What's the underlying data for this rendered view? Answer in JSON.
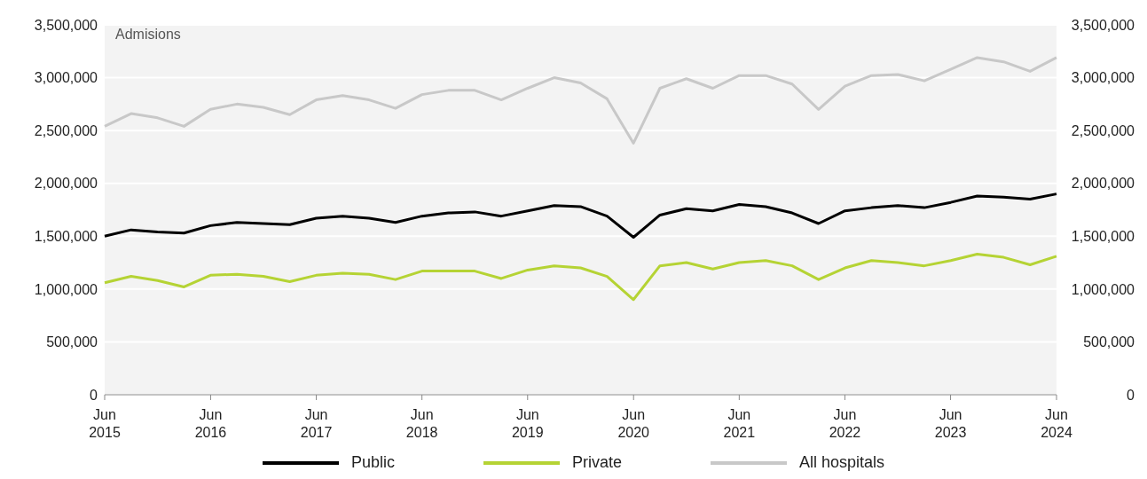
{
  "chart_data": {
    "type": "line",
    "ylabel": "Admisions",
    "x": [
      "2015-06",
      "2015-09",
      "2015-12",
      "2016-03",
      "2016-06",
      "2016-09",
      "2016-12",
      "2017-03",
      "2017-06",
      "2017-09",
      "2017-12",
      "2018-03",
      "2018-06",
      "2018-09",
      "2018-12",
      "2019-03",
      "2019-06",
      "2019-09",
      "2019-12",
      "2020-03",
      "2020-06",
      "2020-09",
      "2020-12",
      "2021-03",
      "2021-06",
      "2021-09",
      "2021-12",
      "2022-03",
      "2022-06",
      "2022-09",
      "2022-12",
      "2023-03",
      "2023-06",
      "2023-09",
      "2023-12",
      "2024-03",
      "2024-06"
    ],
    "series": [
      {
        "name": "Public",
        "color": "#000000",
        "values": [
          1500000,
          1560000,
          1540000,
          1530000,
          1600000,
          1630000,
          1620000,
          1610000,
          1670000,
          1690000,
          1670000,
          1630000,
          1690000,
          1720000,
          1730000,
          1690000,
          1740000,
          1790000,
          1780000,
          1690000,
          1490000,
          1700000,
          1760000,
          1740000,
          1800000,
          1780000,
          1720000,
          1620000,
          1740000,
          1770000,
          1790000,
          1770000,
          1820000,
          1880000,
          1870000,
          1850000,
          1900000
        ]
      },
      {
        "name": "Private",
        "color": "#b5d334",
        "values": [
          1060000,
          1120000,
          1080000,
          1020000,
          1130000,
          1140000,
          1120000,
          1070000,
          1130000,
          1150000,
          1140000,
          1090000,
          1170000,
          1170000,
          1170000,
          1100000,
          1180000,
          1220000,
          1200000,
          1120000,
          900000,
          1220000,
          1250000,
          1190000,
          1250000,
          1270000,
          1220000,
          1090000,
          1200000,
          1270000,
          1250000,
          1220000,
          1270000,
          1330000,
          1300000,
          1230000,
          1310000
        ]
      },
      {
        "name": "All hospitals",
        "color": "#c8c8c8",
        "values": [
          2540000,
          2660000,
          2620000,
          2540000,
          2700000,
          2750000,
          2720000,
          2650000,
          2790000,
          2830000,
          2790000,
          2710000,
          2840000,
          2880000,
          2880000,
          2790000,
          2900000,
          3000000,
          2950000,
          2800000,
          2380000,
          2900000,
          2990000,
          2900000,
          3020000,
          3020000,
          2940000,
          2700000,
          2920000,
          3020000,
          3030000,
          2970000,
          3080000,
          3190000,
          3150000,
          3060000,
          3190000
        ]
      }
    ],
    "xlim": [
      "2015-06",
      "2024-06"
    ],
    "xticks": [
      {
        "value": "2015-06",
        "label": "Jun 2015"
      },
      {
        "value": "2016-06",
        "label": "Jun 2016"
      },
      {
        "value": "2017-06",
        "label": "Jun 2017"
      },
      {
        "value": "2018-06",
        "label": "Jun 2018"
      },
      {
        "value": "2019-06",
        "label": "Jun 2019"
      },
      {
        "value": "2020-06",
        "label": "Jun 2020"
      },
      {
        "value": "2021-06",
        "label": "Jun 2021"
      },
      {
        "value": "2022-06",
        "label": "Jun 2022"
      },
      {
        "value": "2023-06",
        "label": "Jun 2023"
      },
      {
        "value": "2024-06",
        "label": "Jun 2024"
      }
    ],
    "ylim": [
      0,
      3500000
    ],
    "yticks": [
      0,
      {
        "value": 500000,
        "label": "500,000"
      },
      {
        "value": 1000000,
        "label": "1,000,000"
      },
      {
        "value": 1500000,
        "label": "1,500,000"
      },
      {
        "value": 2000000,
        "label": "2,000,000"
      },
      {
        "value": 2500000,
        "label": "2,500,000"
      },
      {
        "value": 3000000,
        "label": "3,000,000"
      },
      {
        "value": 3500000,
        "label": "3,500,000"
      }
    ],
    "y2lim": [
      0,
      3500000
    ],
    "y2ticks": [
      0,
      {
        "value": 500000,
        "label": "500,000"
      },
      {
        "value": 1000000,
        "label": "1,000,000"
      },
      {
        "value": 1500000,
        "label": "1,500,000"
      },
      {
        "value": 2000000,
        "label": "2,000,000"
      },
      {
        "value": 2500000,
        "label": "2,500,000"
      },
      {
        "value": 3000000,
        "label": "3,000,000"
      },
      {
        "value": 3500000,
        "label": "3,500,000"
      }
    ],
    "grid": "y",
    "legend": "bottom",
    "line_style": "solid"
  }
}
